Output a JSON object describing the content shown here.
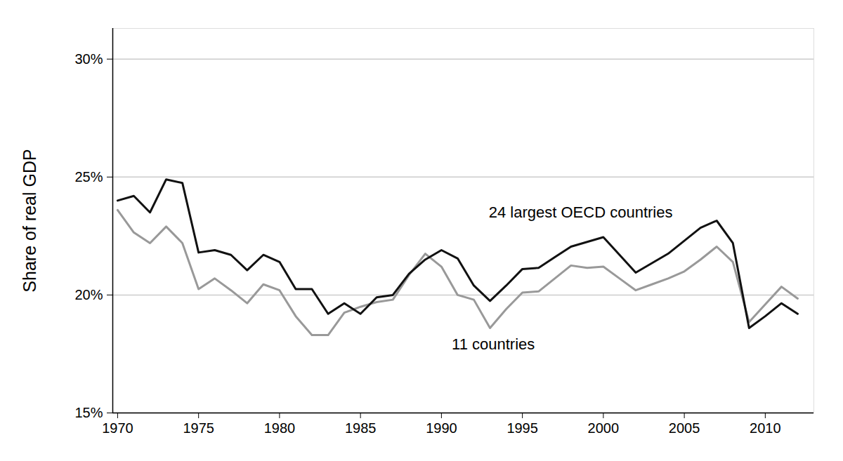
{
  "chart_data": {
    "type": "line",
    "y_label": "Share of real GDP",
    "x": [
      1970,
      1971,
      1972,
      1973,
      1974,
      1975,
      1976,
      1977,
      1978,
      1979,
      1980,
      1981,
      1982,
      1983,
      1984,
      1985,
      1986,
      1987,
      1988,
      1989,
      1990,
      1991,
      1992,
      1993,
      1994,
      1995,
      1996,
      1997,
      1998,
      1999,
      2000,
      2001,
      2002,
      2003,
      2004,
      2005,
      2006,
      2007,
      2008,
      2009,
      2010,
      2011,
      2012
    ],
    "series": [
      {
        "name": "24 largest OECD countries",
        "color": "#111111",
        "label_x": 1998.6,
        "label_y": 23.5,
        "values": [
          24.0,
          24.2,
          23.5,
          24.9,
          24.75,
          21.8,
          21.9,
          21.7,
          21.05,
          21.7,
          21.4,
          20.25,
          20.25,
          19.2,
          19.65,
          19.2,
          19.9,
          20.0,
          20.9,
          21.5,
          21.9,
          21.55,
          20.4,
          19.75,
          20.4,
          21.1,
          21.15,
          21.6,
          22.05,
          22.25,
          22.45,
          21.7,
          20.95,
          21.35,
          21.75,
          22.3,
          22.85,
          23.15,
          22.2,
          18.6,
          19.1,
          19.65,
          19.2
        ]
      },
      {
        "name": "11 countries",
        "color": "#999999",
        "label_x": 1993.2,
        "label_y": 17.9,
        "values": [
          23.6,
          22.65,
          22.2,
          22.9,
          22.2,
          20.25,
          20.7,
          20.2,
          19.65,
          20.45,
          20.2,
          19.1,
          18.3,
          18.3,
          19.25,
          19.5,
          19.7,
          19.8,
          20.85,
          21.75,
          21.2,
          20.0,
          19.8,
          18.6,
          19.4,
          20.1,
          20.15,
          20.7,
          21.25,
          21.15,
          21.2,
          20.7,
          20.2,
          20.45,
          20.7,
          21.0,
          21.5,
          22.05,
          21.4,
          18.85,
          19.6,
          20.35,
          19.85
        ]
      }
    ],
    "xlim": [
      1969.7,
      2013.0
    ],
    "xticks": [
      1970,
      1975,
      1980,
      1985,
      1990,
      1995,
      2000,
      2005,
      2010
    ],
    "ylim": [
      15,
      31.3
    ],
    "yticks": [
      {
        "value": 15,
        "label": "15%"
      },
      {
        "value": 20,
        "label": "20%"
      },
      {
        "value": 25,
        "label": "25%"
      },
      {
        "value": 30,
        "label": "30%"
      }
    ],
    "grid": true
  }
}
